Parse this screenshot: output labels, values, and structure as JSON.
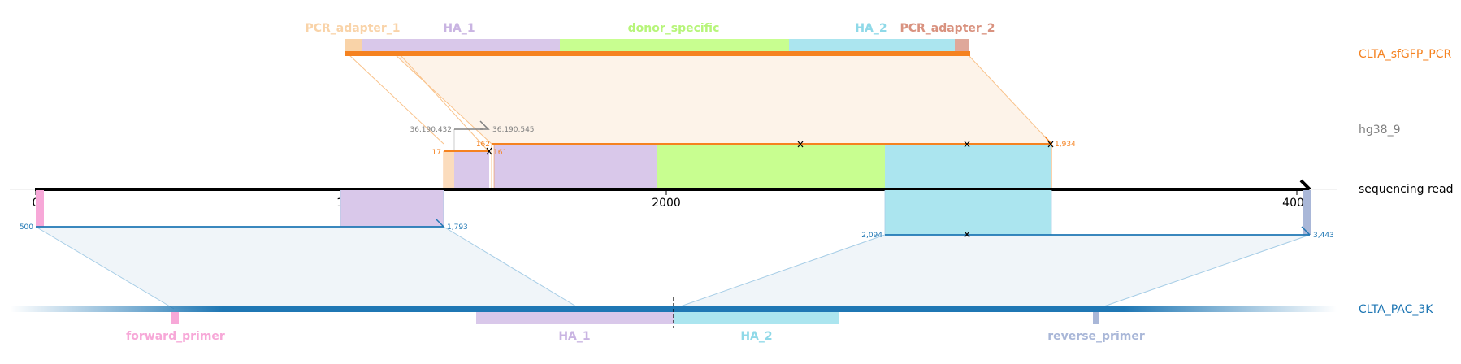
{
  "tracks": {
    "plasmid": "CLTA_sfGFP_PCR",
    "genome": "hg38_9",
    "read": "sequencing read",
    "amplicon": "CLTA_PAC_3K"
  },
  "features_top": [
    "PCR_adapter_1",
    "HA_1",
    "donor_specific",
    "HA_2",
    "PCR_adapter_2"
  ],
  "features_bottom": [
    "forward_primer",
    "HA_1",
    "HA_2",
    "reverse_primer"
  ],
  "axis_ticks": [
    "0",
    "1000",
    "2000",
    "3000",
    "4000"
  ],
  "coords": {
    "genome_start": "36,190,432",
    "genome_end": "36,190,545",
    "donor_17": "17",
    "donor_162": "162",
    "donor_161": "161",
    "donor_1934": "1,934",
    "amp_500": "500",
    "amp_1793": "1,793",
    "amp_2094": "2,094",
    "amp_3443": "3,443"
  },
  "colors": {
    "pcr_adapter_1": "#f9d3a8",
    "ha_1": "#d9c8ea",
    "donor_specific": "#c8fe90",
    "ha_2": "#abe5ef",
    "pcr_adapter_2": "#dfa89a",
    "forward_primer": "#f7a8d8",
    "reverse_primer": "#a9b7d8",
    "orange": "#f58220",
    "blue": "#1f77b4",
    "grey": "#808080"
  }
}
